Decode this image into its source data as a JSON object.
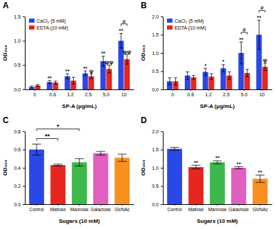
{
  "chart_data": [
    {
      "type": "bar",
      "title": "A",
      "x_label": "SP-A (μg/mL)",
      "y_label": "OD₄₅₀",
      "categories": [
        "0",
        "0.6",
        "1.2",
        "2.5",
        "5.0",
        "10"
      ],
      "series": [
        {
          "name": "CaCl₂ (5 mM)",
          "color": "#2a48e6",
          "values": [
            0.05,
            0.15,
            0.27,
            0.33,
            0.58,
            1.0
          ],
          "errors": [
            0.02,
            0.03,
            0.05,
            0.05,
            0.1,
            0.15
          ]
        },
        {
          "name": "EDTA (10 mM)",
          "color": "#e6261f",
          "values": [
            0.08,
            0.14,
            0.18,
            0.27,
            0.42,
            0.62
          ],
          "errors": [
            0.02,
            0.03,
            0.07,
            0.05,
            0.08,
            0.1
          ]
        }
      ],
      "ylim": [
        0,
        1.5
      ],
      "yticks": [
        {
          "value": 0,
          "label": "0.0"
        },
        0.5,
        {
          "value": 1,
          "label": "1.0"
        },
        1.5
      ],
      "legend": "upper left",
      "annotations": [
        {
          "text": "**",
          "series": 0,
          "category": 1
        },
        {
          "text": "**",
          "series": 0,
          "category": 2
        },
        {
          "text": "**",
          "series": 0,
          "category": 3
        },
        {
          "text": "ψ",
          "series": 1,
          "category": 3
        },
        {
          "text": "**",
          "series": 0,
          "category": 4
        },
        {
          "text": "ψψ",
          "series": 1,
          "category": 4
        },
        {
          "text": "**",
          "series": 0,
          "category": 5
        },
        {
          "text": "ψψ",
          "series": 1,
          "category": 5
        },
        {
          "text": "#",
          "category": 5
        }
      ]
    },
    {
      "type": "bar",
      "title": "B",
      "x_label": "SP-A (μg/mL)",
      "y_label": "OD₄₅₀",
      "categories": [
        "0",
        "0.6",
        "1.2",
        "2.5",
        "5.0",
        "10"
      ],
      "series": [
        {
          "name": "CaCl₂ (5 mM)",
          "color": "#2a48e6",
          "values": [
            0.22,
            0.38,
            0.48,
            0.58,
            1.0,
            1.5
          ],
          "errors": [
            0.1,
            0.1,
            0.1,
            0.1,
            0.3,
            0.4
          ]
        },
        {
          "name": "EDTA (10 mM)",
          "color": "#e6261f",
          "values": [
            0.22,
            0.33,
            0.35,
            0.38,
            0.45,
            0.62
          ],
          "errors": [
            0.1,
            0.05,
            0.08,
            0.1,
            0.1,
            0.1
          ]
        }
      ],
      "ylim": [
        0,
        2
      ],
      "yticks": [
        {
          "value": 0,
          "label": "0.0"
        },
        0.5,
        {
          "value": 1,
          "label": "1.0"
        },
        1.5,
        {
          "value": 2,
          "label": "2.0"
        }
      ],
      "legend": "upper left",
      "annotations": [
        {
          "text": "*",
          "series": 0,
          "category": 2
        },
        {
          "text": "*",
          "series": 0,
          "category": 3
        },
        {
          "text": "**",
          "series": 0,
          "category": 4
        },
        {
          "text": "#",
          "category": 4
        },
        {
          "text": "**",
          "series": 0,
          "category": 5
        },
        {
          "text": "ψ",
          "series": 1,
          "category": 5
        },
        {
          "text": "#",
          "category": 5
        }
      ]
    },
    {
      "type": "bar",
      "title": "C",
      "x_label": "Sugars (10 mM)",
      "y_label": "OD₄₅₀",
      "categories": [
        "Control",
        "Maltose",
        "Mannose",
        "Galactose",
        "GlcNAc"
      ],
      "values": [
        0.6,
        0.43,
        0.46,
        0.56,
        0.51
      ],
      "errors": [
        0.06,
        0.01,
        0.04,
        0.02,
        0.04
      ],
      "colors": [
        "#2a48e6",
        "#e6261f",
        "#3db84a",
        "#e060c0",
        "#f7901e"
      ],
      "ylim": [
        0,
        0.8
      ],
      "yticks": [
        {
          "value": 0,
          "label": "0.0"
        },
        0.2,
        0.4,
        0.6,
        0.8
      ],
      "annotations": [
        {
          "text": "**",
          "from": 0,
          "to": 1
        },
        {
          "text": "*",
          "from": 0,
          "to": 2
        }
      ]
    },
    {
      "type": "bar",
      "title": "D",
      "x_label": "Sugars (10 mM)",
      "y_label": "OD₄₅₀",
      "categories": [
        "Control",
        "Maltose",
        "Mannose",
        "Galactose",
        "GlcNAc"
      ],
      "values": [
        1.52,
        1.02,
        1.15,
        1.0,
        0.7
      ],
      "errors": [
        0.04,
        0.05,
        0.04,
        0.03,
        0.1
      ],
      "colors": [
        "#2a48e6",
        "#e6261f",
        "#3db84a",
        "#e060c0",
        "#f7901e"
      ],
      "ylim": [
        0,
        2
      ],
      "yticks": [
        {
          "value": 0,
          "label": "0.0"
        },
        0.5,
        {
          "value": 1,
          "label": "1.0"
        },
        1.5,
        {
          "value": 2,
          "label": "2.0"
        }
      ],
      "annotations": [
        {
          "text": "**",
          "category": 1
        },
        {
          "text": "**",
          "category": 2
        },
        {
          "text": "**",
          "category": 3
        },
        {
          "text": "**",
          "category": 4
        }
      ]
    }
  ]
}
